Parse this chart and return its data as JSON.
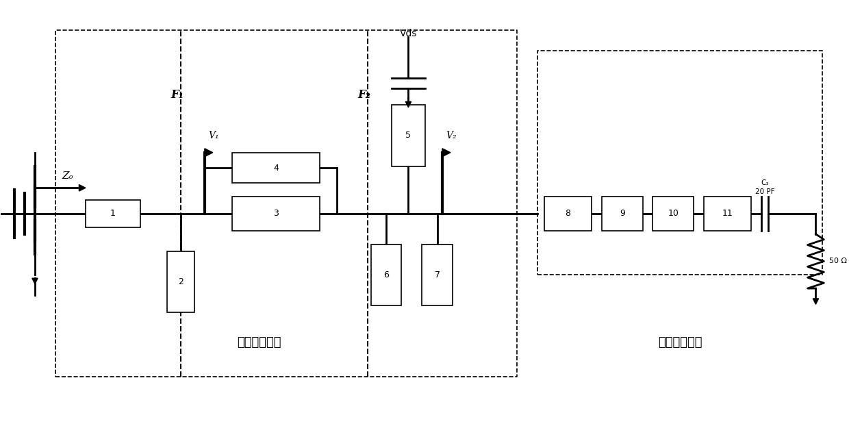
{
  "fig_width": 12.4,
  "fig_height": 6.22,
  "bg_color": "#ffffff",
  "line_color": "#000000",
  "box_labels": [
    "1",
    "2",
    "3",
    "4",
    "5",
    "6",
    "7",
    "8",
    "9",
    "10",
    "11"
  ],
  "label_zo": "Zₒ",
  "label_v1": "V₁",
  "label_v2": "V₂",
  "label_f1": "F₁",
  "label_f2": "F₂",
  "label_vds": "Vds",
  "label_c3": "C₃",
  "label_20pf": "20 PF",
  "label_50ohm": "50 Ω",
  "label_harmonic": "谐波控制电路",
  "label_matching": "基频匹配部分"
}
